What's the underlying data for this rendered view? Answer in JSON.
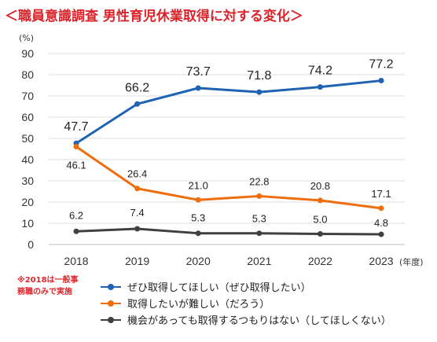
{
  "title": "＜職員意識調査 男性育児休業取得に対する変化＞",
  "note": [
    "※2018は一般事",
    "務職のみで実施"
  ],
  "chart_data": {
    "type": "line",
    "x": [
      "2018",
      "2019",
      "2020",
      "2021",
      "2022",
      "2023"
    ],
    "xlabel": "(年度)",
    "ylabel": "(%)",
    "ylim": [
      0,
      90
    ],
    "yticks": [
      0,
      10,
      20,
      30,
      40,
      50,
      60,
      70,
      80,
      90
    ],
    "grid": true,
    "legend_position": "bottom",
    "series": [
      {
        "name": "ぜひ取得してほしい（ぜひ取得したい）",
        "color": "#1f63b2",
        "values": [
          47.7,
          66.2,
          73.7,
          71.8,
          74.2,
          77.2
        ]
      },
      {
        "name": "取得したいが難しい（だろう）",
        "color": "#ee6e0e",
        "values": [
          46.1,
          26.4,
          21.0,
          22.8,
          20.8,
          17.1
        ]
      },
      {
        "name": "機会があっても取得するつもりはない（してほしくない）",
        "color": "#404040",
        "values": [
          6.2,
          7.4,
          5.3,
          5.3,
          5.0,
          4.8
        ]
      }
    ]
  }
}
